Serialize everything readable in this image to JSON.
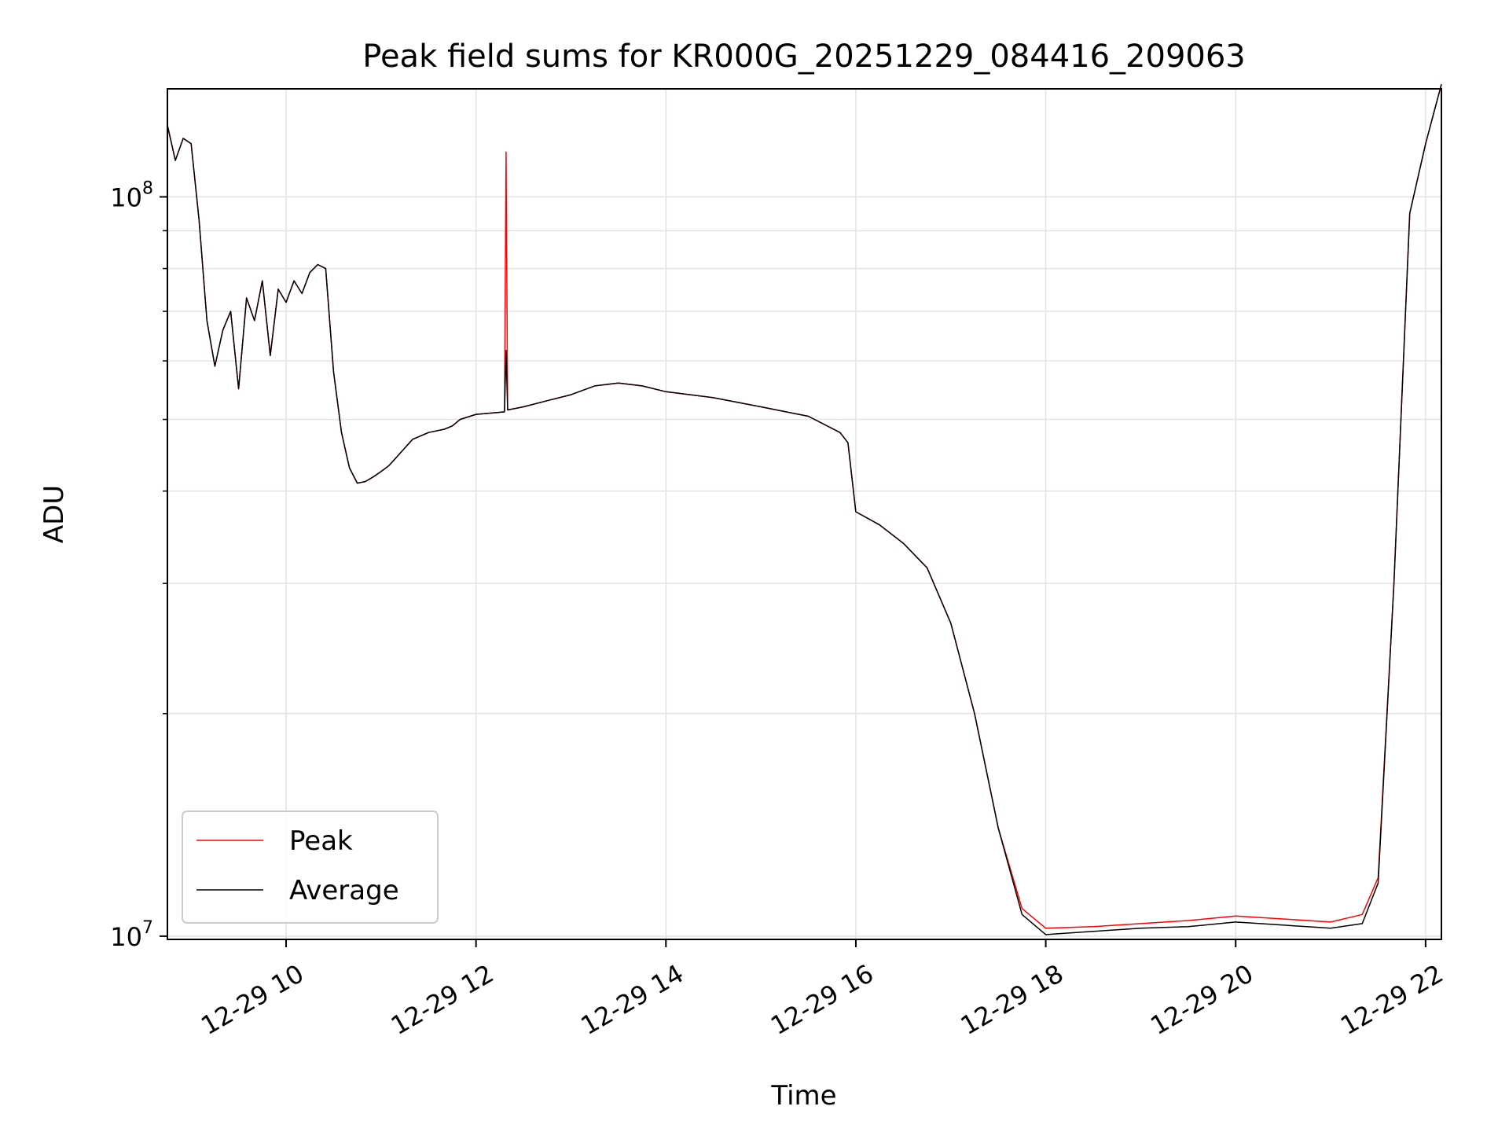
{
  "chart_data": {
    "type": "line",
    "title": "Peak field sums for KR000G_20251229_084416_209063",
    "xlabel": "Time",
    "ylabel": "ADU",
    "yscale": "log",
    "ylim": [
      9900000.0,
      140000000.0
    ],
    "xlim": [
      "2025-12-29 08:45",
      "2025-12-29 22:10"
    ],
    "grid": true,
    "legend_position": "lower-left",
    "x_tick_labels": [
      "12-29 10",
      "12-29 12",
      "12-29 14",
      "12-29 16",
      "12-29 18",
      "12-29 20",
      "12-29 22"
    ],
    "x_ticks": [
      "2025-12-29 10:00",
      "2025-12-29 12:00",
      "2025-12-29 14:00",
      "2025-12-29 16:00",
      "2025-12-29 18:00",
      "2025-12-29 20:00",
      "2025-12-29 22:00"
    ],
    "y_tick_labels": [
      {
        "value": 10000000,
        "base": "10",
        "exp": "7"
      },
      {
        "value": 100000000,
        "base": "10",
        "exp": "8"
      }
    ],
    "colors": {
      "Peak": "#ff0000",
      "Average": "#000000"
    },
    "series": [
      {
        "name": "Peak",
        "x": [
          "2025-12-29 08:45",
          "2025-12-29 08:50",
          "2025-12-29 08:55",
          "2025-12-29 09:00",
          "2025-12-29 09:05",
          "2025-12-29 09:10",
          "2025-12-29 09:15",
          "2025-12-29 09:20",
          "2025-12-29 09:25",
          "2025-12-29 09:30",
          "2025-12-29 09:35",
          "2025-12-29 09:40",
          "2025-12-29 09:45",
          "2025-12-29 09:50",
          "2025-12-29 09:55",
          "2025-12-29 10:00",
          "2025-12-29 10:05",
          "2025-12-29 10:10",
          "2025-12-29 10:15",
          "2025-12-29 10:20",
          "2025-12-29 10:25",
          "2025-12-29 10:30",
          "2025-12-29 10:35",
          "2025-12-29 10:40",
          "2025-12-29 10:45",
          "2025-12-29 10:50",
          "2025-12-29 10:55",
          "2025-12-29 11:00",
          "2025-12-29 11:05",
          "2025-12-29 11:10",
          "2025-12-29 11:20",
          "2025-12-29 11:30",
          "2025-12-29 11:40",
          "2025-12-29 11:45",
          "2025-12-29 11:50",
          "2025-12-29 12:00",
          "2025-12-29 12:10",
          "2025-12-29 12:18",
          "2025-12-29 12:19",
          "2025-12-29 12:20",
          "2025-12-29 12:30",
          "2025-12-29 12:45",
          "2025-12-29 13:00",
          "2025-12-29 13:15",
          "2025-12-29 13:30",
          "2025-12-29 13:45",
          "2025-12-29 14:00",
          "2025-12-29 14:30",
          "2025-12-29 15:00",
          "2025-12-29 15:30",
          "2025-12-29 15:50",
          "2025-12-29 15:55",
          "2025-12-29 16:00",
          "2025-12-29 16:15",
          "2025-12-29 16:30",
          "2025-12-29 16:45",
          "2025-12-29 17:00",
          "2025-12-29 17:15",
          "2025-12-29 17:30",
          "2025-12-29 17:45",
          "2025-12-29 18:00",
          "2025-12-29 18:30",
          "2025-12-29 19:00",
          "2025-12-29 19:30",
          "2025-12-29 20:00",
          "2025-12-29 20:30",
          "2025-12-29 21:00",
          "2025-12-29 21:20",
          "2025-12-29 21:30",
          "2025-12-29 21:40",
          "2025-12-29 21:50",
          "2025-12-29 22:00",
          "2025-12-29 22:10"
        ],
        "y": [
          125000000,
          112000000,
          120000000,
          118000000,
          93000000,
          68000000,
          59000000,
          66000000,
          70000000,
          55000000,
          73000000,
          68000000,
          77000000,
          61000000,
          75000000,
          72000000,
          77000000,
          74000000,
          79000000,
          81000000,
          80000000,
          58000000,
          48000000,
          43000000,
          41000000,
          41200000,
          41800000,
          42500000,
          43300000,
          44500000,
          47000000,
          48000000,
          48500000,
          49000000,
          50000000,
          50800000,
          51000000,
          51200000,
          115000000,
          51500000,
          52000000,
          53000000,
          54000000,
          55500000,
          56000000,
          55500000,
          54500000,
          53500000,
          52000000,
          50500000,
          48000000,
          46500000,
          37500000,
          36000000,
          34000000,
          31500000,
          26500000,
          20000000,
          14000000,
          10900000,
          10250000,
          10300000,
          10400000,
          10500000,
          10650000,
          10550000,
          10450000,
          10700000,
          12000000,
          30000000,
          95000000,
          118000000,
          142000000
        ]
      },
      {
        "name": "Average",
        "x": [
          "2025-12-29 08:45",
          "2025-12-29 08:50",
          "2025-12-29 08:55",
          "2025-12-29 09:00",
          "2025-12-29 09:05",
          "2025-12-29 09:10",
          "2025-12-29 09:15",
          "2025-12-29 09:20",
          "2025-12-29 09:25",
          "2025-12-29 09:30",
          "2025-12-29 09:35",
          "2025-12-29 09:40",
          "2025-12-29 09:45",
          "2025-12-29 09:50",
          "2025-12-29 09:55",
          "2025-12-29 10:00",
          "2025-12-29 10:05",
          "2025-12-29 10:10",
          "2025-12-29 10:15",
          "2025-12-29 10:20",
          "2025-12-29 10:25",
          "2025-12-29 10:30",
          "2025-12-29 10:35",
          "2025-12-29 10:40",
          "2025-12-29 10:45",
          "2025-12-29 10:50",
          "2025-12-29 10:55",
          "2025-12-29 11:00",
          "2025-12-29 11:05",
          "2025-12-29 11:10",
          "2025-12-29 11:20",
          "2025-12-29 11:30",
          "2025-12-29 11:40",
          "2025-12-29 11:45",
          "2025-12-29 11:50",
          "2025-12-29 12:00",
          "2025-12-29 12:10",
          "2025-12-29 12:18",
          "2025-12-29 12:19",
          "2025-12-29 12:20",
          "2025-12-29 12:30",
          "2025-12-29 12:45",
          "2025-12-29 13:00",
          "2025-12-29 13:15",
          "2025-12-29 13:30",
          "2025-12-29 13:45",
          "2025-12-29 14:00",
          "2025-12-29 14:30",
          "2025-12-29 15:00",
          "2025-12-29 15:30",
          "2025-12-29 15:50",
          "2025-12-29 15:55",
          "2025-12-29 16:00",
          "2025-12-29 16:15",
          "2025-12-29 16:30",
          "2025-12-29 16:45",
          "2025-12-29 17:00",
          "2025-12-29 17:15",
          "2025-12-29 17:30",
          "2025-12-29 17:45",
          "2025-12-29 18:00",
          "2025-12-29 18:30",
          "2025-12-29 19:00",
          "2025-12-29 19:30",
          "2025-12-29 20:00",
          "2025-12-29 20:30",
          "2025-12-29 21:00",
          "2025-12-29 21:20",
          "2025-12-29 21:30",
          "2025-12-29 21:40",
          "2025-12-29 21:50",
          "2025-12-29 22:00",
          "2025-12-29 22:10"
        ],
        "y": [
          125000000,
          112000000,
          120000000,
          118000000,
          93000000,
          68000000,
          59000000,
          66000000,
          70000000,
          55000000,
          73000000,
          68000000,
          77000000,
          61000000,
          75000000,
          72000000,
          77000000,
          74000000,
          79000000,
          81000000,
          80000000,
          58000000,
          48000000,
          43000000,
          41000000,
          41200000,
          41800000,
          42500000,
          43300000,
          44500000,
          47000000,
          48000000,
          48500000,
          49000000,
          50000000,
          50800000,
          51000000,
          51200000,
          62000000,
          51500000,
          52000000,
          53000000,
          54000000,
          55500000,
          56000000,
          55500000,
          54500000,
          53500000,
          52000000,
          50500000,
          48000000,
          46500000,
          37500000,
          36000000,
          34000000,
          31500000,
          26500000,
          20000000,
          14000000,
          10700000,
          10050000,
          10150000,
          10250000,
          10300000,
          10450000,
          10350000,
          10250000,
          10400000,
          11800000,
          30000000,
          95000000,
          118000000,
          142000000
        ]
      }
    ]
  }
}
